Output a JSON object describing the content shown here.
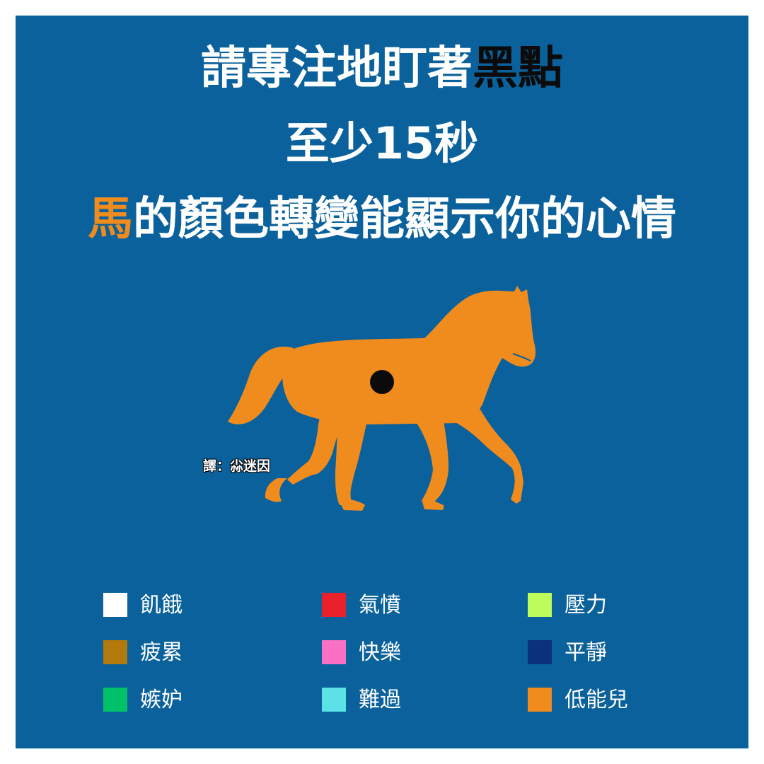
{
  "title": {
    "line1_prefix": "請專注地盯著",
    "line1_highlight": "黑點",
    "line2": "至少15秒",
    "line3_highlight": "馬",
    "line3_suffix": "的顏色轉變能顯示你的心情"
  },
  "credit": "譯：尛迷因",
  "colors": {
    "background": "#0a619b",
    "horse": "#f08c1e",
    "dot": "#0b0b0b"
  },
  "legend": [
    {
      "label": "飢餓",
      "color": "#ffffff"
    },
    {
      "label": "氣憤",
      "color": "#e8212a"
    },
    {
      "label": "壓力",
      "color": "#bdfc5a"
    },
    {
      "label": "疲累",
      "color": "#b27a0c"
    },
    {
      "label": "快樂",
      "color": "#fa70c6"
    },
    {
      "label": "平靜",
      "color": "#0a3179"
    },
    {
      "label": "嫉妒",
      "color": "#00c168"
    },
    {
      "label": "難過",
      "color": "#5ce2e6"
    },
    {
      "label": "低能兒",
      "color": "#f08c1e"
    }
  ]
}
